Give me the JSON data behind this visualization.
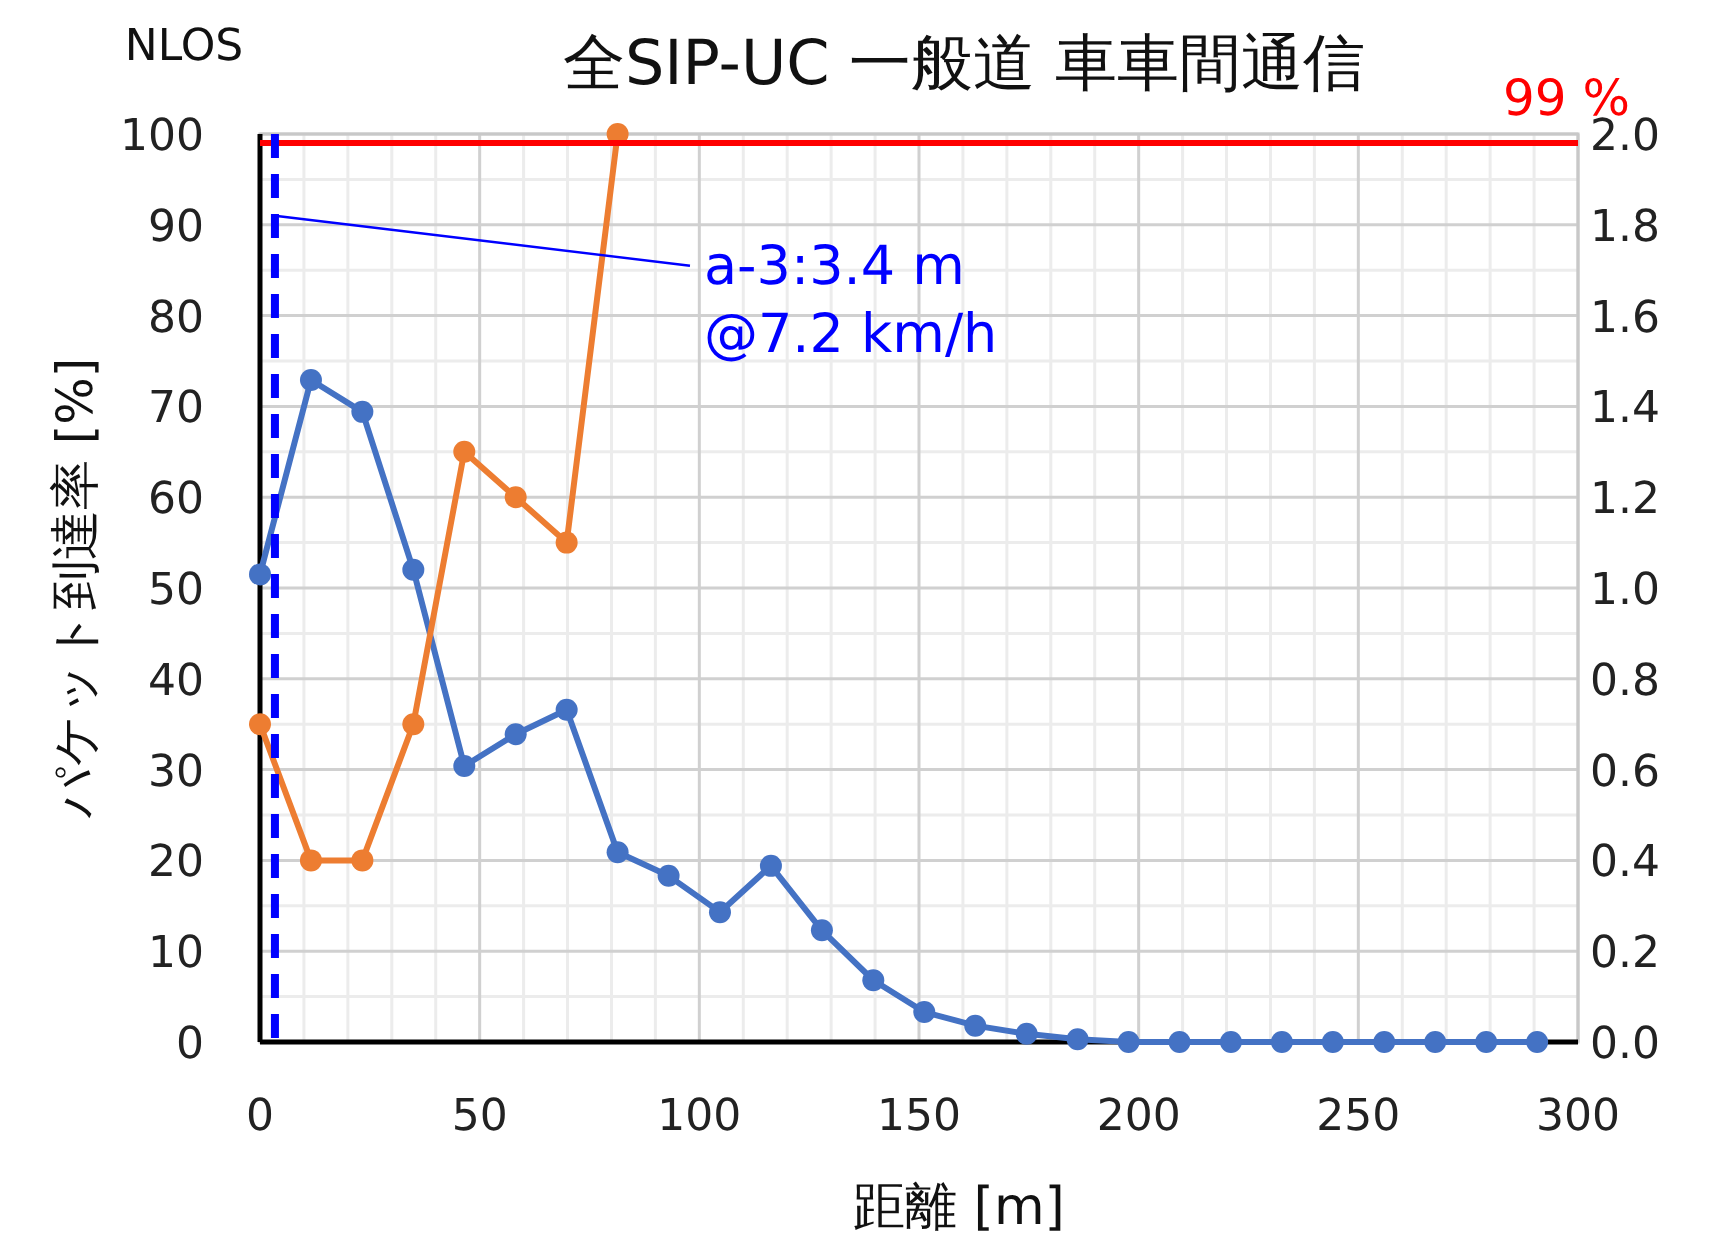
{
  "chart_data": {
    "type": "line",
    "title": "全SIP-UC 一般道 車車間通信",
    "xlabel": "距離 [m]",
    "ylabel": "パケット到達率 [%]",
    "annotations": [
      "NLOS"
    ],
    "xlim": [
      0,
      300
    ],
    "xticks": [
      0,
      50,
      100,
      150,
      200,
      250,
      300
    ],
    "ylim": [
      0,
      100
    ],
    "yticks": [
      0,
      10,
      20,
      30,
      40,
      50,
      60,
      70,
      80,
      90,
      100
    ],
    "y2lim": [
      0,
      2
    ],
    "y2ticks": [
      {
        "value": 0,
        "label": "0.0"
      },
      {
        "value": 0.2,
        "label": "0.2"
      },
      {
        "value": 0.4,
        "label": "0.4"
      },
      {
        "value": 0.6,
        "label": "0.6"
      },
      {
        "value": 0.8,
        "label": "0.8"
      },
      {
        "value": 1.0,
        "label": "1.0"
      },
      {
        "value": 1.2,
        "label": "1.2"
      },
      {
        "value": 1.4,
        "label": "1.4"
      },
      {
        "value": 1.6,
        "label": "1.6"
      },
      {
        "value": 1.8,
        "label": "1.8"
      },
      {
        "value": 2.0,
        "label": "2.0"
      }
    ],
    "grid": true,
    "marker": "circle",
    "line_style": "solid",
    "series": [
      {
        "color": "#4472c4",
        "x": [
          0,
          11.6,
          23.3,
          34.9,
          46.5,
          58.2,
          69.8,
          81.4,
          93,
          104.7,
          116.3,
          127.9,
          139.6,
          151.2,
          162.8,
          174.5,
          186.1,
          197.7,
          209.3,
          221,
          232.6,
          244.2,
          255.9,
          267.5,
          279.1,
          290.7
        ],
        "values": [
          51.5,
          72.9,
          69.4,
          52,
          30.4,
          33.9,
          36.6,
          20.9,
          18.3,
          14.3,
          19.4,
          12.3,
          6.8,
          3.3,
          1.8,
          0.9,
          0.3,
          0,
          0,
          0,
          0,
          0,
          0,
          0,
          0,
          0
        ]
      },
      {
        "color": "#ed7d31",
        "axis": "y2",
        "x": [
          0,
          11.6,
          23.3,
          34.9,
          46.5,
          58.2,
          69.8,
          81.4
        ],
        "values": [
          0.7,
          0.4,
          0.4,
          0.7,
          1.3,
          1.2,
          1.1,
          2.0
        ]
      }
    ],
    "ref_lines": [
      {
        "axis": "y",
        "value": 99,
        "label": "99 %",
        "color": "#ff0000",
        "line_style": "solid"
      },
      {
        "axis": "x",
        "value": 3.4,
        "label": "a-3:3.4 m @7.2 km/h",
        "color": "#0000ff",
        "line_style": "dashed"
      }
    ]
  }
}
